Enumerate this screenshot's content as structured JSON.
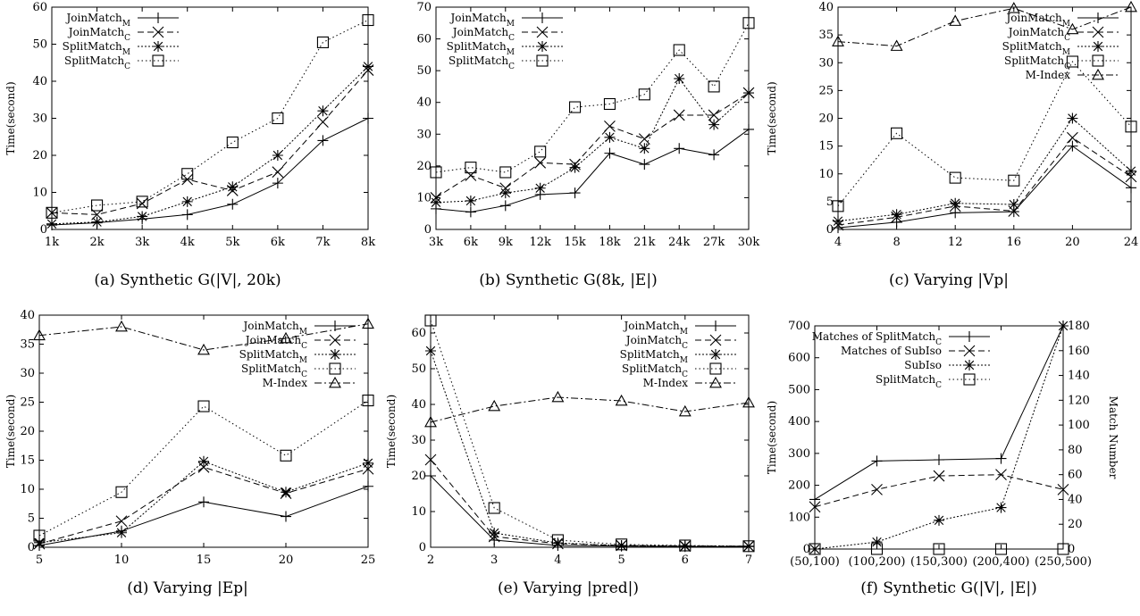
{
  "figure": {
    "captions": [
      "(a) Synthetic G(|V|, 20k)",
      "(b) Synthetic G(8k, |E|)",
      "(c) Varying |Vp|",
      "(d) Varying |Ep|",
      "(e) Varying |pred|)",
      "(f) Synthetic G(|V|, |E|)"
    ]
  },
  "chart_data": [
    {
      "type": "line",
      "title": "(a) Synthetic G(|V|, 20k)",
      "ylabel": "Time(second)",
      "categories": [
        "1k",
        "2k",
        "3k",
        "4k",
        "5k",
        "6k",
        "7k",
        "8k"
      ],
      "ylim": [
        0,
        60
      ],
      "yticks": [
        0,
        10,
        20,
        30,
        40,
        50,
        60
      ],
      "legend_position": "top-left",
      "series": [
        {
          "name": "JoinMatch_M",
          "marker": "plus",
          "dash": "solid",
          "values": [
            1.2,
            1.8,
            2.8,
            4.0,
            6.8,
            12.5,
            24.0,
            30.0
          ]
        },
        {
          "name": "JoinMatch_C",
          "marker": "x",
          "dash": "dashed",
          "values": [
            4.5,
            4.0,
            7.0,
            13.5,
            10.5,
            15.5,
            29.0,
            43.0
          ]
        },
        {
          "name": "SplitMatch_M",
          "marker": "star",
          "dash": "dotted-dense",
          "values": [
            1.5,
            2.0,
            3.5,
            7.5,
            11.5,
            20.0,
            32.0,
            44.0
          ]
        },
        {
          "name": "SplitMatch_C",
          "marker": "square",
          "dash": "dotted",
          "values": [
            4.5,
            6.5,
            7.5,
            15.0,
            23.5,
            30.0,
            50.5,
            56.5
          ]
        }
      ]
    },
    {
      "type": "line",
      "title": "(b) Synthetic G(8k, |E|)",
      "ylabel": "",
      "categories": [
        "3k",
        "6k",
        "9k",
        "12k",
        "15k",
        "18k",
        "21k",
        "24k",
        "27k",
        "30k"
      ],
      "ylim": [
        0,
        70
      ],
      "yticks": [
        0,
        10,
        20,
        30,
        40,
        50,
        60,
        70
      ],
      "legend_position": "top-left",
      "series": [
        {
          "name": "JoinMatch_M",
          "marker": "plus",
          "dash": "solid",
          "values": [
            6.5,
            5.5,
            7.5,
            11.0,
            11.5,
            24.0,
            20.5,
            25.5,
            23.5,
            31.5
          ]
        },
        {
          "name": "JoinMatch_C",
          "marker": "x",
          "dash": "dashed",
          "values": [
            10.0,
            17.0,
            13.0,
            21.0,
            20.5,
            32.5,
            28.5,
            36.0,
            36.0,
            43.0
          ]
        },
        {
          "name": "SplitMatch_M",
          "marker": "star",
          "dash": "dotted-dense",
          "values": [
            8.5,
            9.0,
            11.5,
            13.0,
            19.5,
            29.0,
            25.5,
            47.5,
            33.0,
            43.0
          ]
        },
        {
          "name": "SplitMatch_C",
          "marker": "square",
          "dash": "dotted",
          "values": [
            18.0,
            19.5,
            18.0,
            24.5,
            38.5,
            39.5,
            42.5,
            56.5,
            45.0,
            65.0
          ]
        }
      ]
    },
    {
      "type": "line",
      "title": "(c) Varying |Vp|",
      "ylabel": "Time(second)",
      "categories": [
        "4",
        "8",
        "12",
        "16",
        "20",
        "24"
      ],
      "ylim": [
        0,
        40
      ],
      "yticks": [
        0,
        5,
        10,
        15,
        20,
        25,
        30,
        35,
        40
      ],
      "legend_position": "top-right",
      "series": [
        {
          "name": "JoinMatch_M",
          "marker": "plus",
          "dash": "solid",
          "values": [
            0.3,
            1.3,
            3.0,
            3.2,
            15.0,
            7.5
          ]
        },
        {
          "name": "JoinMatch_C",
          "marker": "x",
          "dash": "dashed",
          "values": [
            0.8,
            2.2,
            4.2,
            3.3,
            16.5,
            9.5
          ]
        },
        {
          "name": "SplitMatch_M",
          "marker": "star",
          "dash": "dotted-dense",
          "values": [
            1.5,
            2.7,
            4.7,
            4.5,
            20.0,
            10.5
          ]
        },
        {
          "name": "SplitMatch_C",
          "marker": "square",
          "dash": "dotted",
          "values": [
            4.2,
            17.3,
            9.3,
            8.8,
            30.2,
            18.5
          ]
        },
        {
          "name": "M-Index",
          "marker": "triangle",
          "dash": "dashdot",
          "values": [
            33.8,
            33.0,
            37.5,
            39.8,
            36.0,
            40.0
          ]
        }
      ]
    },
    {
      "type": "line",
      "title": "(d) Varying |Ep|",
      "ylabel": "Time(second)",
      "categories": [
        "5",
        "10",
        "15",
        "20",
        "25"
      ],
      "ylim": [
        0,
        40
      ],
      "yticks": [
        0,
        5,
        10,
        15,
        20,
        25,
        30,
        35,
        40
      ],
      "legend_position": "top-right",
      "series": [
        {
          "name": "JoinMatch_M",
          "marker": "plus",
          "dash": "solid",
          "values": [
            0.3,
            2.8,
            7.8,
            5.3,
            10.5
          ]
        },
        {
          "name": "JoinMatch_C",
          "marker": "x",
          "dash": "dashed",
          "values": [
            0.6,
            4.5,
            13.8,
            9.3,
            13.5
          ]
        },
        {
          "name": "SplitMatch_M",
          "marker": "star",
          "dash": "dotted-dense",
          "values": [
            0.8,
            2.5,
            14.8,
            9.5,
            14.5
          ]
        },
        {
          "name": "SplitMatch_C",
          "marker": "square",
          "dash": "dotted",
          "values": [
            2.0,
            9.5,
            24.3,
            15.8,
            25.3
          ]
        },
        {
          "name": "M-Index",
          "marker": "triangle",
          "dash": "dashdot",
          "values": [
            36.5,
            38.0,
            34.0,
            36.0,
            38.5
          ]
        }
      ]
    },
    {
      "type": "line",
      "title": "(e) Varying |pred|)",
      "ylabel": "Time(second)",
      "categories": [
        "2",
        "3",
        "4",
        "5",
        "6",
        "7"
      ],
      "ylim": [
        0,
        65
      ],
      "yticks": [
        0,
        10,
        20,
        30,
        40,
        50,
        60
      ],
      "legend_position": "top-right",
      "series": [
        {
          "name": "JoinMatch_M",
          "marker": "plus",
          "dash": "solid",
          "values": [
            20.0,
            2.0,
            0.5,
            0.3,
            0.2,
            0.2
          ]
        },
        {
          "name": "JoinMatch_C",
          "marker": "x",
          "dash": "dashed",
          "values": [
            24.5,
            3.0,
            1.0,
            0.5,
            0.3,
            0.3
          ]
        },
        {
          "name": "SplitMatch_M",
          "marker": "star",
          "dash": "dotted-dense",
          "values": [
            55.0,
            4.0,
            1.2,
            0.5,
            0.4,
            0.3
          ]
        },
        {
          "name": "SplitMatch_C",
          "marker": "square",
          "dash": "dotted",
          "values": [
            63.5,
            11.0,
            2.0,
            0.8,
            0.5,
            0.3
          ]
        },
        {
          "name": "M-Index",
          "marker": "triangle",
          "dash": "dashdot",
          "values": [
            35.0,
            39.5,
            42.0,
            41.0,
            38.0,
            40.5
          ]
        }
      ]
    },
    {
      "type": "line",
      "title": "(f) Synthetic G(|V|, |E|)",
      "ylabel": "Time(second)",
      "y2label": "Match Number",
      "categories": [
        "(50,100)",
        "(100,200)",
        "(150,300)",
        "(200,400)",
        "(250,500)"
      ],
      "ylim": [
        0,
        700
      ],
      "yticks": [
        0,
        100,
        200,
        300,
        400,
        500,
        600,
        700
      ],
      "y2lim": [
        0,
        180
      ],
      "y2ticks": [
        0,
        20,
        40,
        60,
        80,
        100,
        120,
        140,
        160,
        180
      ],
      "legend_position": "top-left",
      "series": [
        {
          "name": "Matches of SplitMatch_C",
          "marker": "plus",
          "dash": "solid",
          "axis": "y2",
          "values": [
            40,
            71,
            72,
            73,
            180
          ]
        },
        {
          "name": "Matches of SubIso",
          "marker": "x",
          "dash": "dashed",
          "axis": "y2",
          "values": [
            34,
            48,
            59,
            60,
            48
          ]
        },
        {
          "name": "SubIso",
          "marker": "star",
          "dash": "dotted-dense",
          "axis": "y1",
          "values": [
            0,
            22,
            90,
            130,
            700
          ]
        },
        {
          "name": "SplitMatch_C",
          "marker": "square",
          "dash": "dotted",
          "axis": "y1",
          "values": [
            0,
            0,
            0,
            0,
            0
          ]
        }
      ]
    }
  ]
}
